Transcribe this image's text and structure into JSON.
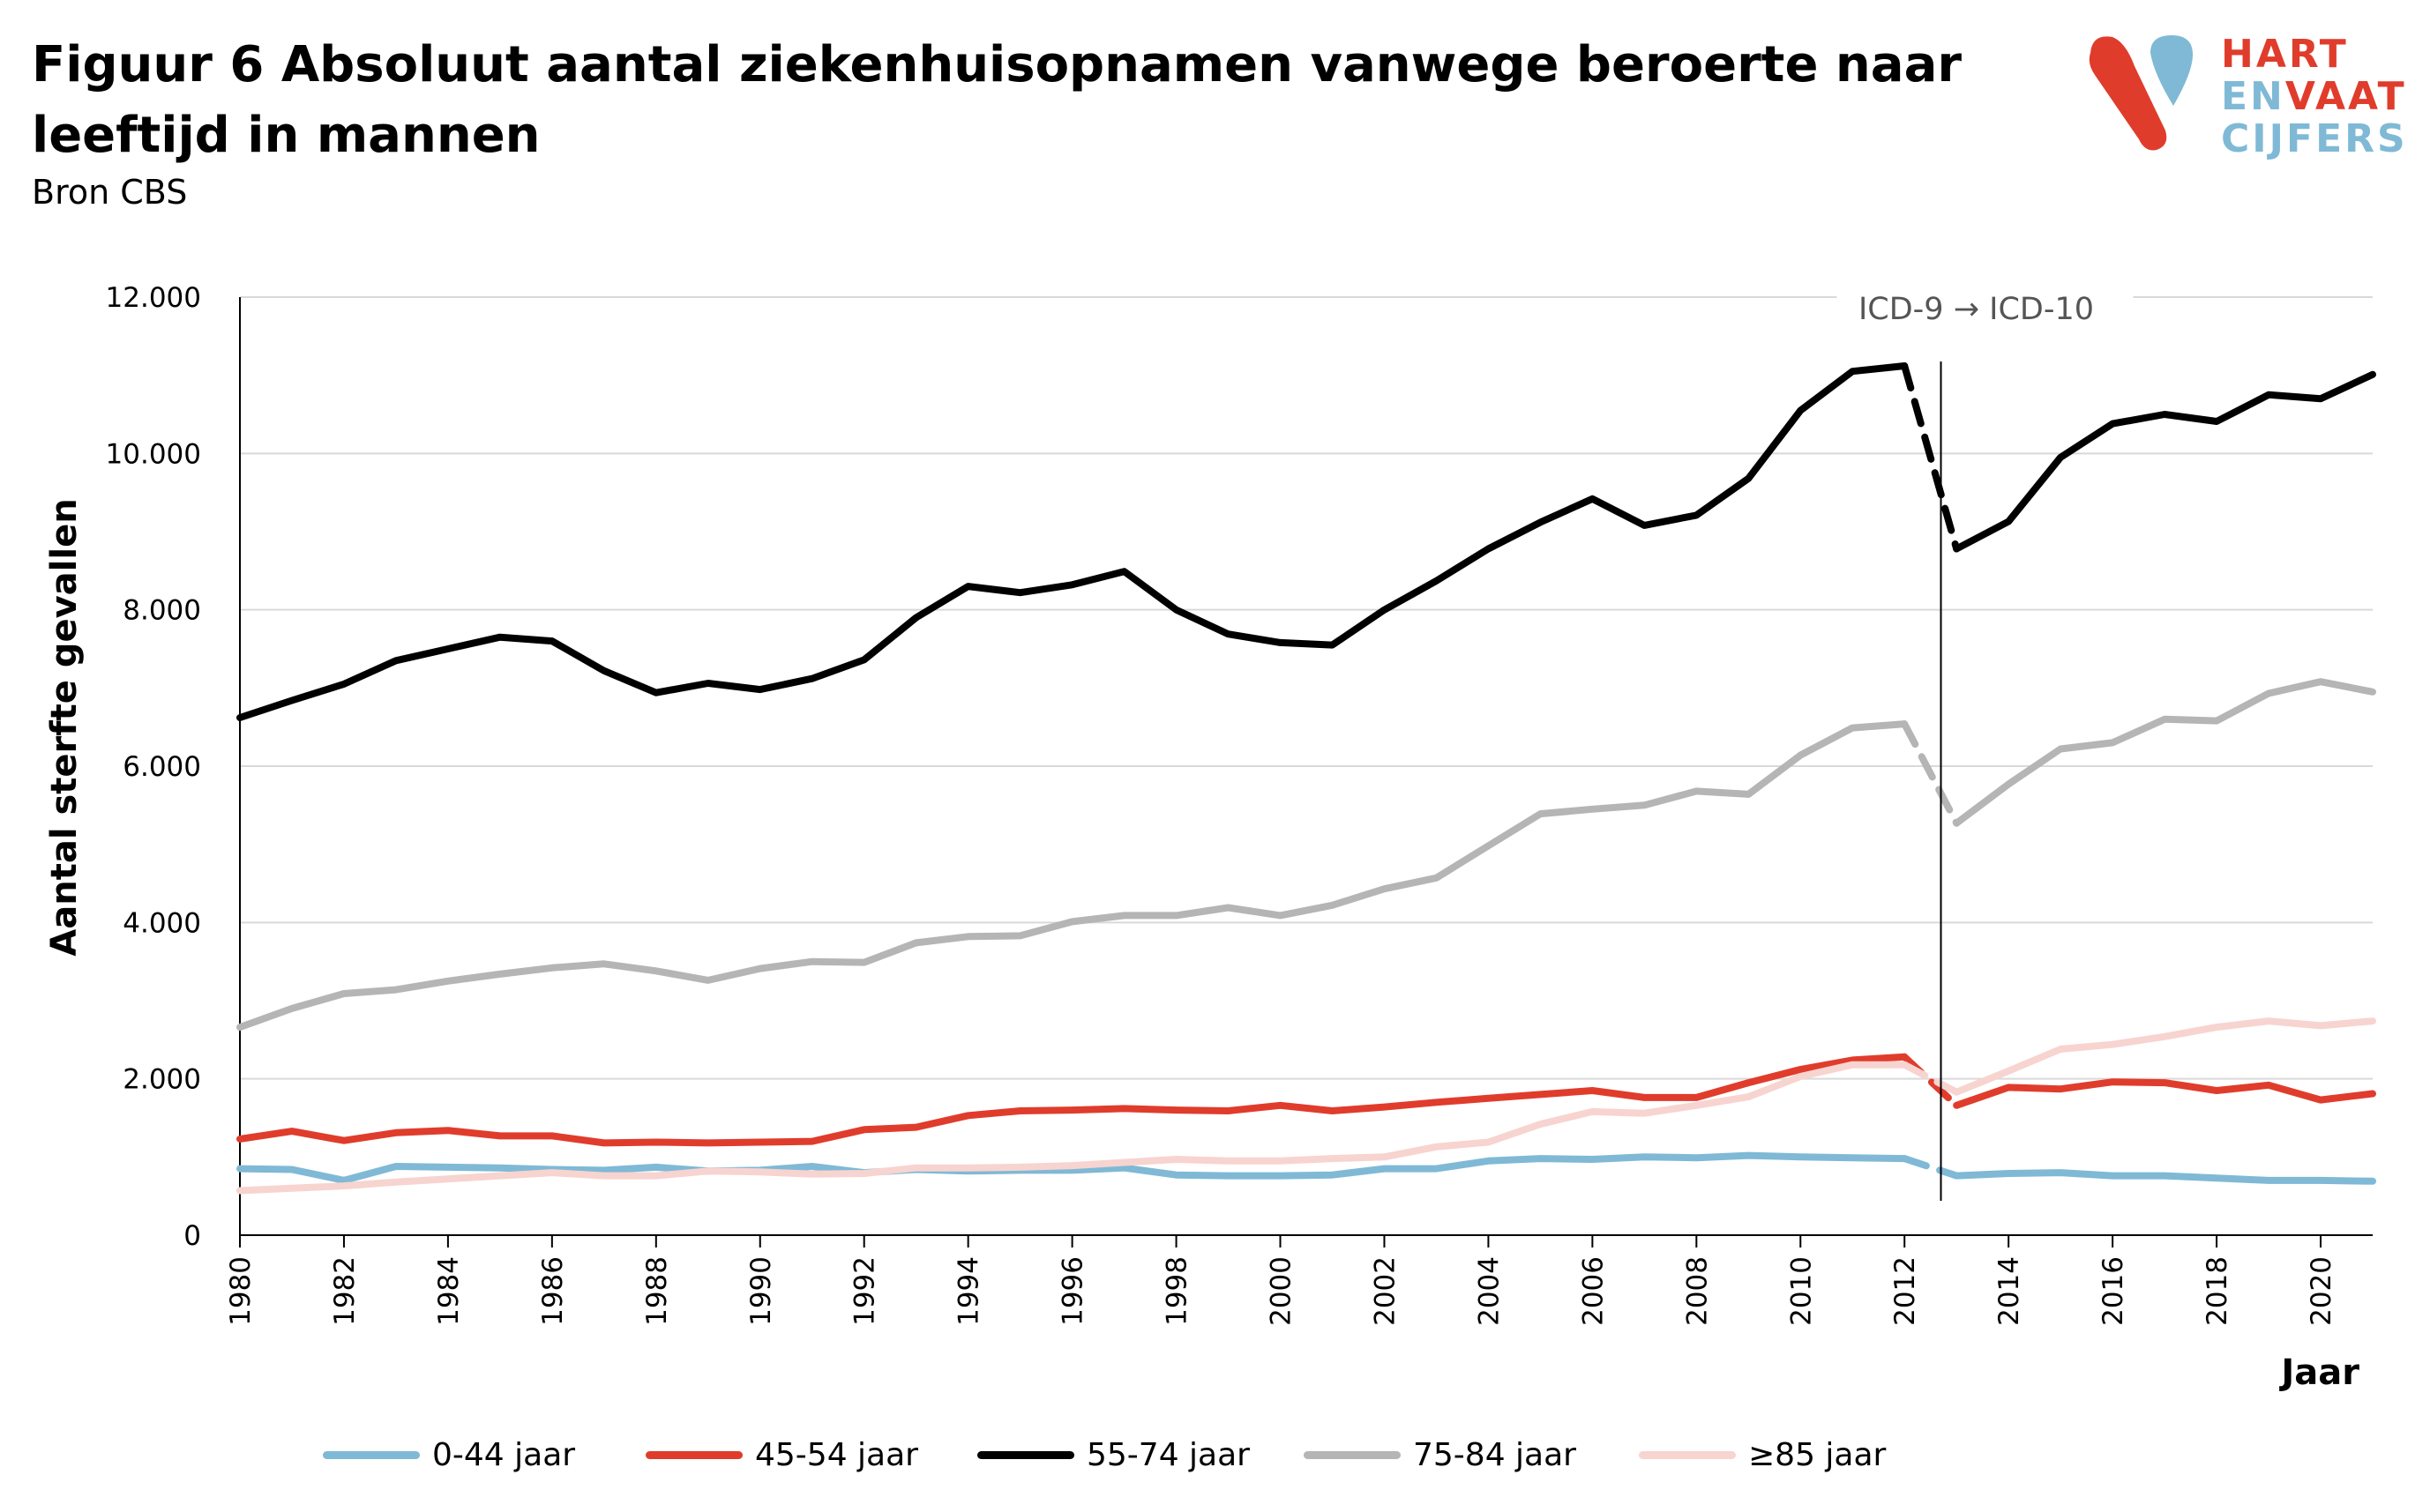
{
  "title": "Figuur 6 Absoluut aantal ziekenhuisopnamen vanwege beroerte naar leeftijd in mannen",
  "subtitle": "Bron CBS",
  "logo": {
    "line1a": "HART",
    "line2a": "EN",
    "line2b": "VAAT",
    "line3a": "CIJFERS",
    "red": "#e03c2c",
    "blue": "#7fb9d6"
  },
  "chart_data": {
    "type": "line",
    "title": "Figuur 6 Absoluut aantal ziekenhuisopnamen vanwege beroerte naar leeftijd in mannen",
    "xlabel": "Jaar",
    "ylabel": "Aantal sterfte gevallen",
    "xlim": [
      1980,
      2021
    ],
    "ylim": [
      0,
      12000
    ],
    "yticks": [
      0,
      2000,
      4000,
      6000,
      8000,
      10000,
      12000
    ],
    "ytick_labels": [
      "0",
      "2.000",
      "4.000",
      "6.000",
      "8.000",
      "10.000",
      "12.000"
    ],
    "xticks": [
      1980,
      1982,
      1984,
      1986,
      1988,
      1990,
      1992,
      1994,
      1996,
      1998,
      2000,
      2002,
      2004,
      2006,
      2008,
      2010,
      2012,
      2014,
      2016,
      2018,
      2020
    ],
    "xtick_labels": [
      "1980",
      "1982",
      "1984",
      "1986",
      "1988",
      "1990",
      "1992",
      "1994",
      "1996",
      "1998",
      "2000",
      "2002",
      "2004",
      "2006",
      "2008",
      "2010",
      "2012",
      "2014",
      "2016",
      "2018",
      "2020"
    ],
    "grid": "horizontal",
    "legend_position": "bottom",
    "break": {
      "year": 2012.7,
      "label": "ICD-9 → ICD-10"
    },
    "x": [
      1980,
      1981,
      1982,
      1983,
      1984,
      1985,
      1986,
      1987,
      1988,
      1989,
      1990,
      1991,
      1992,
      1993,
      1994,
      1995,
      1996,
      1997,
      1998,
      1999,
      2000,
      2001,
      2002,
      2003,
      2004,
      2005,
      2006,
      2007,
      2008,
      2009,
      2010,
      2011,
      2012,
      2013,
      2014,
      2015,
      2016,
      2017,
      2018,
      2019,
      2020,
      2021
    ],
    "series": [
      {
        "name": "0-44 jaar",
        "color": "#7fb9d6",
        "values": [
          850,
          840,
          700,
          880,
          870,
          860,
          840,
          830,
          870,
          820,
          830,
          880,
          800,
          840,
          820,
          830,
          830,
          860,
          770,
          760,
          760,
          770,
          850,
          850,
          950,
          980,
          970,
          1000,
          990,
          1020,
          1000,
          990,
          980,
          760,
          790,
          800,
          760,
          760,
          730,
          700,
          700,
          690
        ]
      },
      {
        "name": "45-54 jaar",
        "color": "#e03c2c",
        "values": [
          1230,
          1330,
          1210,
          1310,
          1340,
          1270,
          1270,
          1180,
          1190,
          1180,
          1190,
          1200,
          1350,
          1380,
          1530,
          1590,
          1600,
          1620,
          1600,
          1590,
          1660,
          1590,
          1640,
          1700,
          1750,
          1800,
          1850,
          1760,
          1760,
          1950,
          2120,
          2240,
          2280,
          1660,
          1890,
          1870,
          1960,
          1950,
          1850,
          1920,
          1730,
          1810
        ]
      },
      {
        "name": "55-74 jaar",
        "color": "#000000",
        "values": [
          6620,
          6840,
          7050,
          7350,
          7500,
          7650,
          7600,
          7220,
          6940,
          7060,
          6980,
          7120,
          7360,
          7900,
          8300,
          8220,
          8320,
          8490,
          8000,
          7690,
          7580,
          7550,
          8000,
          8370,
          8780,
          9120,
          9420,
          9080,
          9210,
          9680,
          10550,
          11050,
          11120,
          8780,
          9130,
          9950,
          10380,
          10500,
          10410,
          10750,
          10700,
          11010
        ]
      },
      {
        "name": "75-84 jaar",
        "color": "#b5b5b5",
        "values": [
          2660,
          2900,
          3090,
          3140,
          3250,
          3340,
          3420,
          3470,
          3380,
          3260,
          3410,
          3500,
          3490,
          3740,
          3820,
          3830,
          4010,
          4090,
          4090,
          4190,
          4090,
          4220,
          4430,
          4570,
          4980,
          5390,
          5450,
          5500,
          5680,
          5640,
          6140,
          6490,
          6540,
          5270,
          5770,
          6220,
          6300,
          6600,
          6580,
          6930,
          7080,
          6950
        ]
      },
      {
        "name": "≥85 jaar",
        "color": "#f7d4d0",
        "values": [
          570,
          600,
          630,
          680,
          720,
          760,
          800,
          760,
          760,
          820,
          810,
          780,
          790,
          860,
          860,
          870,
          890,
          930,
          970,
          950,
          950,
          980,
          1000,
          1130,
          1190,
          1420,
          1580,
          1560,
          1660,
          1770,
          2030,
          2180,
          2180,
          1830,
          2100,
          2380,
          2440,
          2540,
          2660,
          2740,
          2680,
          2740
        ]
      }
    ]
  }
}
